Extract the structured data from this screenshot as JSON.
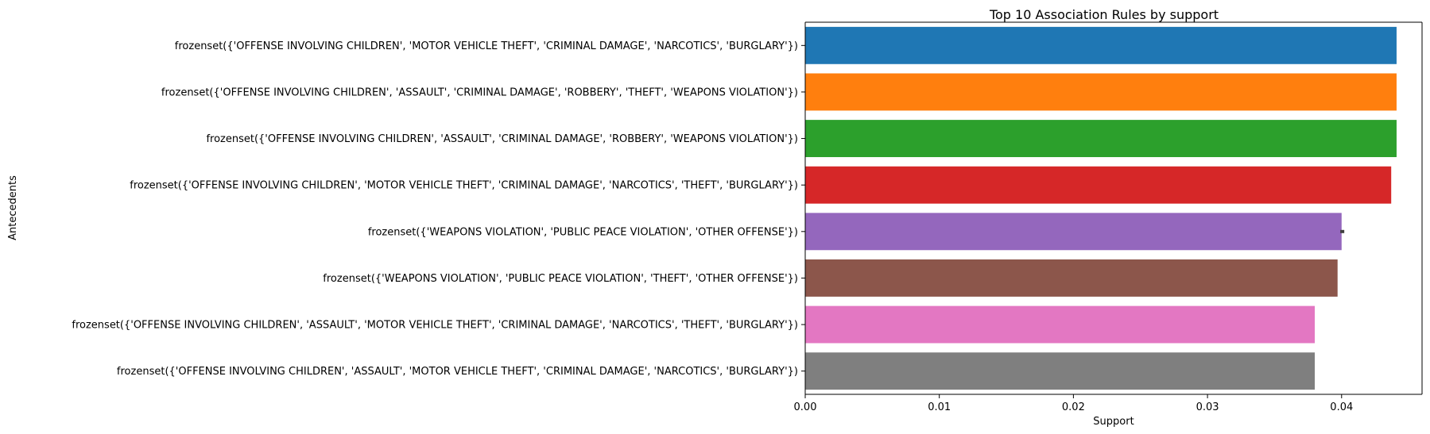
{
  "chart_data": {
    "type": "bar",
    "orientation": "horizontal",
    "title": "Top 10 Association Rules by support",
    "xlabel": "Support",
    "ylabel": "Antecedents",
    "xlim": [
      0,
      0.046
    ],
    "xticks": [
      "0.00",
      "0.01",
      "0.02",
      "0.03",
      "0.04"
    ],
    "grid": false,
    "categories": [
      "frozenset({'OFFENSE INVOLVING CHILDREN', 'MOTOR VEHICLE THEFT', 'CRIMINAL DAMAGE', 'NARCOTICS', 'BURGLARY'})",
      "frozenset({'OFFENSE INVOLVING CHILDREN', 'ASSAULT', 'CRIMINAL DAMAGE', 'ROBBERY', 'THEFT', 'WEAPONS VIOLATION'})",
      "frozenset({'OFFENSE INVOLVING CHILDREN', 'ASSAULT', 'CRIMINAL DAMAGE', 'ROBBERY', 'WEAPONS VIOLATION'})",
      "frozenset({'OFFENSE INVOLVING CHILDREN', 'MOTOR VEHICLE THEFT', 'CRIMINAL DAMAGE', 'NARCOTICS', 'THEFT', 'BURGLARY'})",
      "frozenset({'WEAPONS VIOLATION', 'PUBLIC PEACE VIOLATION', 'OTHER OFFENSE'})",
      "frozenset({'WEAPONS VIOLATION', 'PUBLIC PEACE VIOLATION', 'THEFT', 'OTHER OFFENSE'})",
      "frozenset({'OFFENSE INVOLVING CHILDREN', 'ASSAULT', 'MOTOR VEHICLE THEFT', 'CRIMINAL DAMAGE', 'NARCOTICS', 'THEFT', 'BURGLARY'})",
      "frozenset({'OFFENSE INVOLVING CHILDREN', 'ASSAULT', 'MOTOR VEHICLE THEFT', 'CRIMINAL DAMAGE', 'NARCOTICS', 'BURGLARY'})"
    ],
    "values": [
      0.0441,
      0.0441,
      0.0441,
      0.0437,
      0.04,
      0.0397,
      0.038,
      0.038
    ],
    "error_bars": [
      null,
      null,
      null,
      null,
      [
        0.0399,
        0.0402
      ],
      null,
      null,
      null
    ],
    "colors": [
      "#1f77b4",
      "#ff7f0e",
      "#2ca02c",
      "#d62728",
      "#9467bd",
      "#8c564b",
      "#e377c2",
      "#7f7f7f"
    ]
  }
}
